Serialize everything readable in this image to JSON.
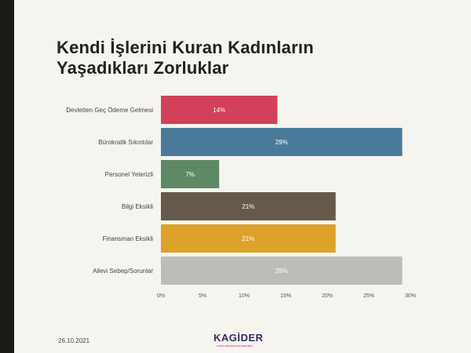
{
  "slide": {
    "title_line1": "Kendi İşlerini Kuran Kadınların",
    "title_line2": "Yaşadıkları Zorluklar",
    "date": "26.10.2021",
    "logo_text": "KAGİDER",
    "logo_subtext": "KADIN GİRİŞİMCİLERİ DERNEĞİ",
    "accent_bar_color": "#1c1c17",
    "background_color": "#f6f4ef"
  },
  "chart_data": {
    "type": "bar",
    "orientation": "horizontal",
    "title": "",
    "xlabel": "",
    "ylabel": "",
    "categories": [
      "Devletten Geç Ödeme Gelmesi",
      "Bürokratik Sıkıntılar",
      "Personel Yeterizli",
      "Bilgi Eksikli",
      "Finansman Eksikli",
      "Ailevi Sebep/Sorunlar"
    ],
    "values": [
      14,
      29,
      7,
      21,
      21,
      29
    ],
    "value_labels": [
      "14%",
      "29%",
      "7%",
      "21%",
      "21%",
      "29%"
    ],
    "colors": [
      "#d2405a",
      "#4a7a9a",
      "#5d8a64",
      "#64594a",
      "#dca22a",
      "#bdbcb6"
    ],
    "xlim": [
      0,
      30
    ],
    "xticks": [
      0,
      5,
      10,
      15,
      20,
      25,
      30
    ],
    "xtick_labels": [
      "0%",
      "5%",
      "10%",
      "15%",
      "20%",
      "25%",
      "30%"
    ],
    "grid": false,
    "legend": "none"
  }
}
